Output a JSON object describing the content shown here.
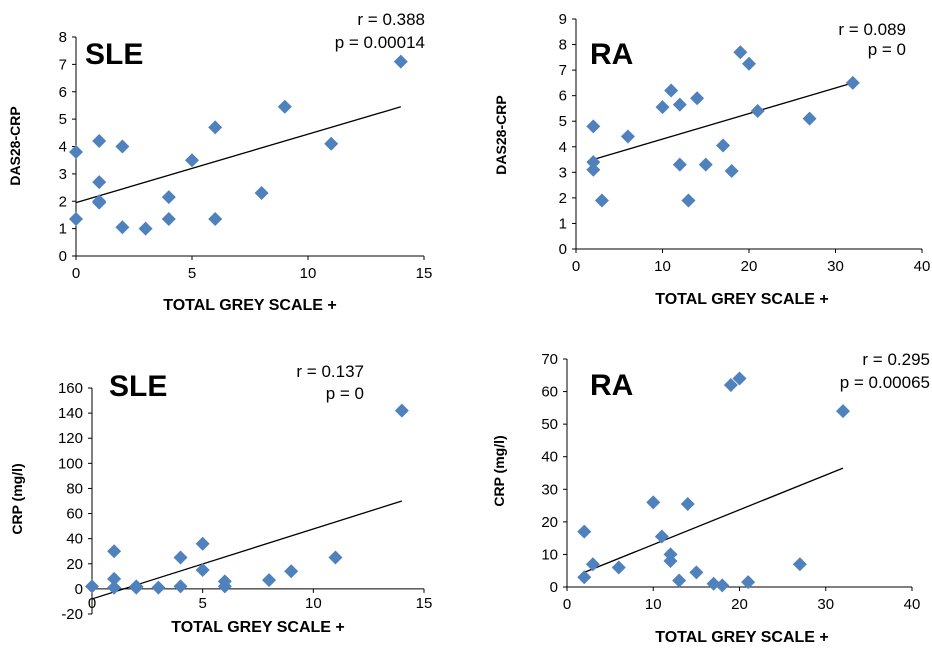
{
  "chart_data": [
    {
      "type": "scatter",
      "group_label": "SLE",
      "annotation": {
        "r": "r = 0.388",
        "p": "p = 0.00014"
      },
      "xlabel": "TOTAL GREY SCALE +",
      "ylabel": "DAS28-CRP",
      "xlim": [
        0,
        15
      ],
      "ylim": [
        0,
        8
      ],
      "xticks": [
        0,
        5,
        10,
        15
      ],
      "yticks": [
        0,
        1,
        2,
        3,
        4,
        5,
        6,
        7,
        8
      ],
      "x": [
        0,
        0,
        1,
        1,
        1,
        1,
        2,
        2,
        3,
        4,
        4,
        5,
        6,
        6,
        8,
        9,
        11,
        14
      ],
      "y": [
        1.35,
        3.8,
        4.2,
        2.7,
        2.0,
        1.95,
        4.0,
        1.05,
        1.0,
        1.35,
        2.15,
        3.5,
        1.35,
        4.7,
        2.3,
        5.45,
        4.1,
        7.1
      ],
      "trendline": [
        [
          0,
          1.95
        ],
        [
          14,
          5.45
        ]
      ],
      "marker_color": "#4F81BD"
    },
    {
      "type": "scatter",
      "group_label": "RA",
      "annotation": {
        "r": "r = 0.089",
        "p": "p = 0"
      },
      "xlabel": "TOTAL GREY SCALE +",
      "ylabel": "DAS28-CRP",
      "xlim": [
        0,
        40
      ],
      "ylim": [
        0,
        9
      ],
      "xticks": [
        0,
        10,
        20,
        30,
        40
      ],
      "yticks": [
        0,
        1,
        2,
        3,
        4,
        5,
        6,
        7,
        8,
        9
      ],
      "x": [
        2,
        2,
        2,
        3,
        6,
        10,
        11,
        12,
        12,
        13,
        14,
        15,
        17,
        18,
        19,
        20,
        21,
        27,
        32
      ],
      "y": [
        4.8,
        3.4,
        3.1,
        1.9,
        4.4,
        5.55,
        6.2,
        5.65,
        3.3,
        1.9,
        5.9,
        3.3,
        4.05,
        3.05,
        7.7,
        7.25,
        5.4,
        5.1,
        6.5
      ],
      "trendline": [
        [
          2,
          3.5
        ],
        [
          32,
          6.5
        ]
      ],
      "marker_color": "#4F81BD"
    },
    {
      "type": "scatter",
      "group_label": "SLE",
      "annotation": {
        "r": "r = 0.137",
        "p": "p = 0"
      },
      "xlabel": "TOTAL GREY SCALE +",
      "ylabel": "CRP (mg/l)",
      "xlim": [
        0,
        15
      ],
      "ylim": [
        -20,
        160
      ],
      "xticks": [
        0,
        5,
        10,
        15
      ],
      "yticks": [
        -20,
        0,
        20,
        40,
        60,
        80,
        100,
        120,
        140,
        160
      ],
      "x": [
        0,
        1,
        1,
        1,
        2,
        2,
        3,
        4,
        4,
        5,
        5,
        6,
        6,
        8,
        9,
        11,
        14
      ],
      "y": [
        2,
        30,
        8,
        1,
        1,
        2,
        1,
        25,
        2,
        36,
        15,
        6,
        2,
        7,
        14,
        25,
        142
      ],
      "trendline": [
        [
          0,
          -8
        ],
        [
          14,
          70
        ]
      ],
      "marker_color": "#4F81BD"
    },
    {
      "type": "scatter",
      "group_label": "RA",
      "annotation": {
        "r": "r = 0.295",
        "p": "p = 0.00065"
      },
      "xlabel": "TOTAL GREY SCALE +",
      "ylabel": "CRP (mg/l)",
      "xlim": [
        0,
        40
      ],
      "ylim": [
        0,
        70
      ],
      "xticks": [
        0,
        10,
        20,
        30,
        40
      ],
      "yticks": [
        0,
        10,
        20,
        30,
        40,
        50,
        60,
        70
      ],
      "x": [
        2,
        2,
        3,
        6,
        10,
        11,
        12,
        12,
        13,
        14,
        15,
        17,
        18,
        19,
        20,
        21,
        27,
        32
      ],
      "y": [
        17,
        3,
        7,
        6,
        26,
        15.5,
        10,
        8,
        2,
        25.5,
        4.5,
        1,
        0.5,
        62,
        64,
        1.5,
        7,
        54
      ],
      "trendline": [
        [
          2,
          4.5
        ],
        [
          32,
          36.5
        ]
      ],
      "marker_color": "#4F81BD"
    }
  ]
}
